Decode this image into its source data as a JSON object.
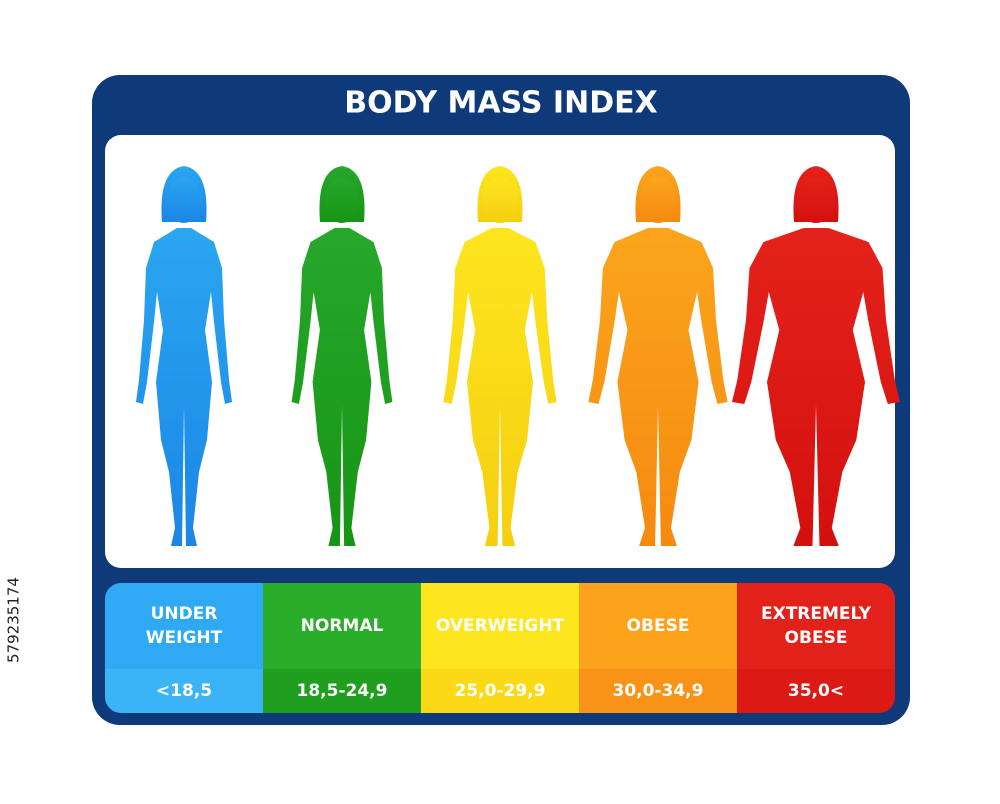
{
  "header": {
    "title": "BODY MASS INDEX"
  },
  "categories": [
    {
      "label": [
        "UNDER",
        "WEIGHT"
      ],
      "range": "<18,5"
    },
    {
      "label": [
        "NORMAL"
      ],
      "range": "18,5-24,9"
    },
    {
      "label": [
        "OVERWEIGHT"
      ],
      "range": "25,0-29,9"
    },
    {
      "label": [
        "OBESE"
      ],
      "range": "30,0-34,9"
    },
    {
      "label": [
        "EXTREMELY",
        "OBESE"
      ],
      "range": "35,0<"
    }
  ],
  "stock_id": "579235174"
}
